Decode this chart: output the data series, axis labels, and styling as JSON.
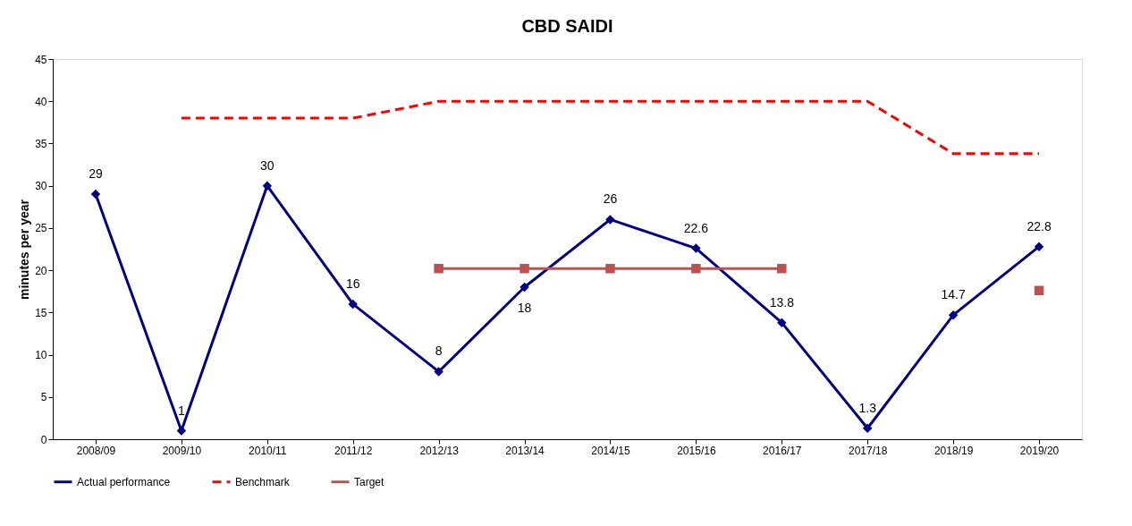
{
  "chart_data": {
    "type": "line",
    "title": "CBD SAIDI",
    "ylabel": "minutes per year",
    "categories": [
      "2008/09",
      "2009/10",
      "2010/11",
      "2011/12",
      "2012/13",
      "2013/14",
      "2014/15",
      "2015/16",
      "2016/17",
      "2017/18",
      "2018/19",
      "2019/20"
    ],
    "ylim": [
      0,
      45
    ],
    "yticks": [
      0,
      5,
      10,
      15,
      20,
      25,
      30,
      35,
      40,
      45
    ],
    "grid": false,
    "legend": "bottom",
    "series": [
      {
        "name": "Actual performance",
        "color": "#000080",
        "marker": "diamond",
        "line_style": "solid",
        "values": [
          29,
          1,
          30,
          16,
          8,
          18,
          26,
          22.6,
          13.8,
          1.3,
          14.7,
          22.8
        ],
        "value_labels": [
          "29",
          "1",
          "30",
          "16",
          "8",
          "18",
          "26",
          "22.6",
          "13.8",
          "1.3",
          "14.7",
          "22.8"
        ]
      },
      {
        "name": "Benchmark",
        "color": "#ff0000",
        "marker": "none",
        "line_style": "dashed",
        "values": [
          null,
          38,
          38,
          38,
          40,
          40,
          40,
          40,
          40,
          40,
          33.8,
          33.8
        ]
      },
      {
        "name": "Target",
        "color": "#c0504d",
        "marker": "square",
        "line_style": "solid",
        "values": [
          null,
          null,
          null,
          null,
          20.2,
          20.2,
          20.2,
          20.2,
          20.2,
          null,
          null,
          17.6
        ]
      }
    ]
  }
}
